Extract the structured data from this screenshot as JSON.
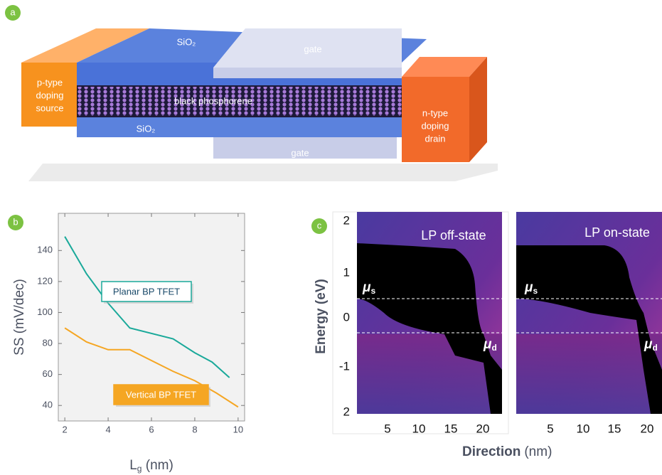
{
  "panels": {
    "a": {
      "label": "a",
      "sio2_top": "SiO₂",
      "gate_top": "gate",
      "source": [
        "p-type",
        "doping",
        "source"
      ],
      "channel": "black phosphorene",
      "sio2_bottom": "SiO₂",
      "drain": [
        "n-type",
        "doping",
        "drain"
      ],
      "gate_bottom": "gate"
    },
    "c": {
      "label": "c",
      "ylabel": "Energy (eV)",
      "xlabel": {
        "main": "Direction",
        "unit": "(nm)"
      },
      "yticks": [
        "2",
        "1",
        "0",
        "-1",
        "2"
      ],
      "maps": [
        {
          "title": "LP off-state",
          "xticks": [
            "5",
            "10",
            "15",
            "20"
          ],
          "mu_s": {
            "symbol": "μ",
            "sub": "s"
          },
          "mu_d": {
            "symbol": "μ",
            "sub": "d"
          }
        },
        {
          "title": "LP on-state",
          "xticks": [
            "5",
            "10",
            "15",
            "20"
          ],
          "mu_s": {
            "symbol": "μ",
            "sub": "s"
          },
          "mu_d": {
            "symbol": "μ",
            "sub": "d"
          }
        }
      ]
    }
  },
  "chart_data": {
    "type": "line",
    "label": "b",
    "ylabel": "SS (mV/dec)",
    "xlabel": {
      "main": "L",
      "sub": "g",
      "unit": " (nm)"
    },
    "xlim": [
      1.7,
      10.3
    ],
    "ylim": [
      30,
      164
    ],
    "xticks": [
      2,
      4,
      6,
      8,
      10
    ],
    "yticks": [
      40,
      60,
      80,
      100,
      120,
      140
    ],
    "grid": false,
    "series": [
      {
        "name": "Planar BP TFET",
        "color": "#1aa99a",
        "x": [
          2,
          3,
          4,
          5,
          7,
          8,
          8.8,
          9.6
        ],
        "values": [
          149,
          125,
          106,
          90,
          83,
          74,
          68,
          58
        ]
      },
      {
        "name": "Vertical BP TFET",
        "color": "#f5a623",
        "x": [
          2,
          3,
          4,
          5,
          7,
          8,
          9,
          10
        ],
        "values": [
          90,
          81,
          76,
          76,
          62,
          56,
          48,
          39
        ]
      }
    ]
  }
}
